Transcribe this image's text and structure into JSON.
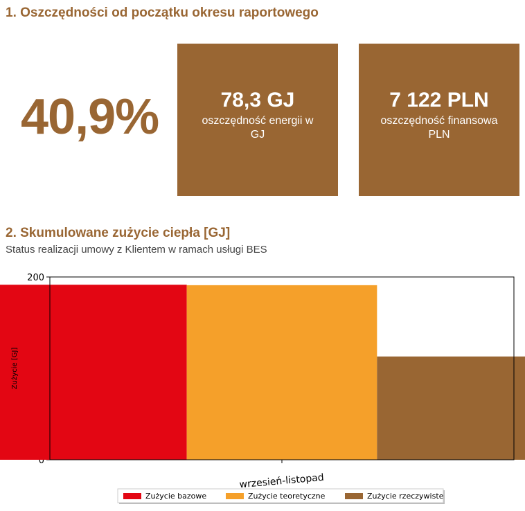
{
  "section1": {
    "title": "1. Oszczędności od początku okresu raportowego",
    "percent": "40,9%",
    "cards": [
      {
        "value": "78,3 GJ",
        "label": "oszczędność energii w GJ"
      },
      {
        "value": "7 122 PLN",
        "label": "oszczędność finansowa PLN"
      }
    ]
  },
  "section2": {
    "title": "2. Skumulowane zużycie ciepła [GJ]",
    "subtitle": "Status realizacji umowy z Klientem w ramach usługi BES"
  },
  "colors": {
    "brand": "#996633",
    "bazowe": "#e30613",
    "teoretyczne": "#f5a02a",
    "rzeczywiste": "#996633"
  },
  "chart_data": {
    "type": "bar",
    "categories": [
      "wrzesień-listopad"
    ],
    "series": [
      {
        "name": "Zużycie bazowe",
        "values": [
          191.5
        ],
        "color": "#e30613"
      },
      {
        "name": "Zużycie teoretyczne",
        "values": [
          191
        ],
        "color": "#f5a02a"
      },
      {
        "name": "Zużycie rzeczywiste",
        "values": [
          113
        ],
        "color": "#996633"
      }
    ],
    "ylabel": "Zużycie [GJ]",
    "ylim": [
      0,
      200
    ],
    "yticks": [
      0,
      25,
      50,
      75,
      100,
      125,
      150,
      175,
      200
    ],
    "legend": "bottom",
    "grid": false
  }
}
